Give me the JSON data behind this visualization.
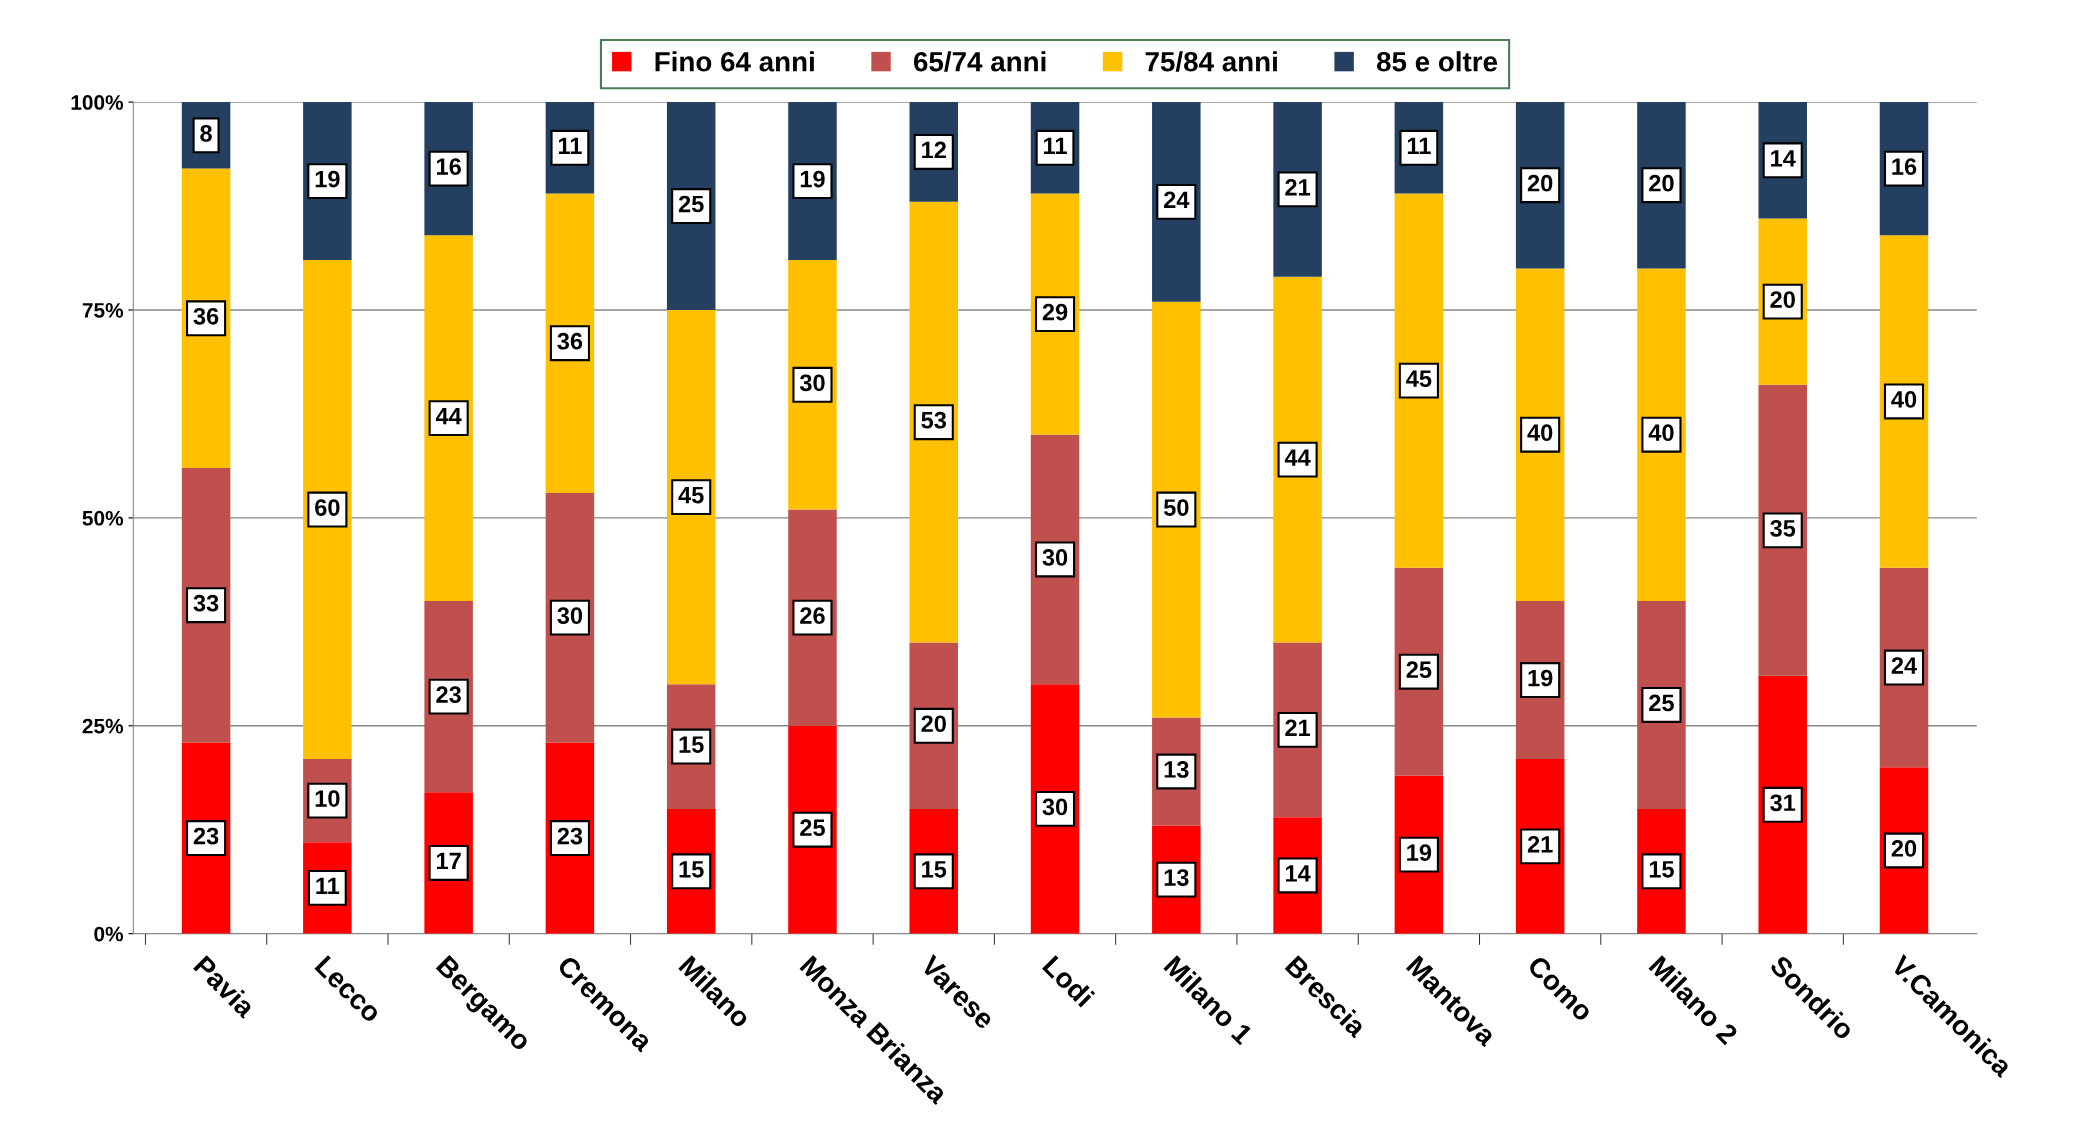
{
  "chart_data": {
    "type": "bar",
    "stacked": true,
    "data_labels": true,
    "legend": "top",
    "grid": "y",
    "categories": [
      "Pavia",
      "Lecco",
      "Bergamo",
      "Cremona",
      "Milano",
      "Monza Brianza",
      "Varese",
      "Lodi",
      "Milano 1",
      "Brescia",
      "Mantova",
      "Como",
      "Milano 2",
      "Sondrio",
      "V.Camonica"
    ],
    "series": [
      {
        "name": "Fino 64 anni",
        "color": "#ff0000",
        "values": [
          23,
          11,
          17,
          23,
          15,
          25,
          15,
          30,
          13,
          14,
          19,
          21,
          15,
          31,
          20
        ]
      },
      {
        "name": "65/74 anni",
        "color": "#c0504d",
        "values": [
          33,
          10,
          23,
          30,
          15,
          26,
          20,
          30,
          13,
          21,
          25,
          19,
          25,
          35,
          24
        ]
      },
      {
        "name": "75/84 anni",
        "color": "#ffc000",
        "values": [
          36,
          60,
          44,
          36,
          45,
          30,
          53,
          29,
          50,
          44,
          45,
          40,
          40,
          20,
          40
        ]
      },
      {
        "name": "85 e oltre",
        "color": "#243f60",
        "values": [
          8,
          19,
          16,
          11,
          25,
          19,
          12,
          11,
          24,
          21,
          11,
          20,
          20,
          14,
          16
        ]
      }
    ],
    "ylim": [
      0,
      100
    ],
    "yticks": [
      {
        "value": 0,
        "label": "0%"
      },
      {
        "value": 25,
        "label": "25%"
      },
      {
        "value": 50,
        "label": "50%"
      },
      {
        "value": 75,
        "label": "75%"
      },
      {
        "value": 100,
        "label": "100%"
      }
    ]
  }
}
